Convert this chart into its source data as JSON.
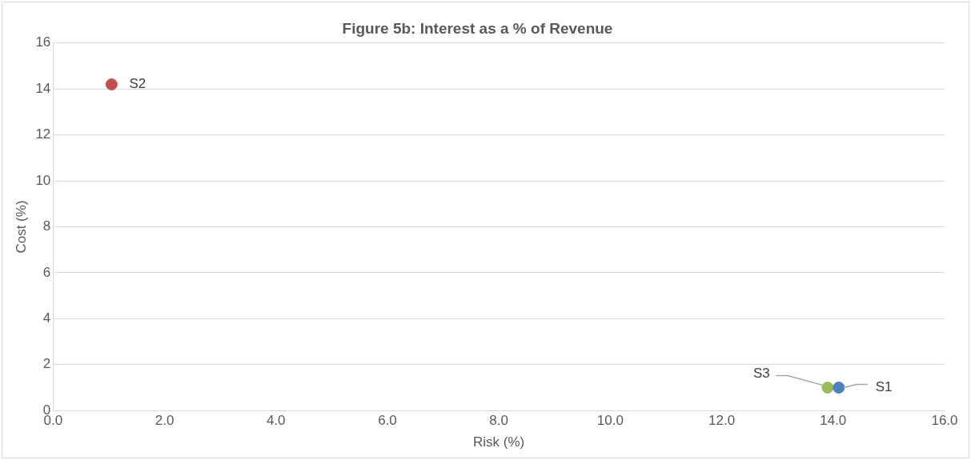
{
  "chart_data": {
    "type": "scatter",
    "title": "Figure 5b: Interest as a % of Revenue",
    "xlabel": "Risk (%)",
    "ylabel": "Cost (%)",
    "series": [
      {
        "name": "S1",
        "color": "#4f81bd",
        "x": [
          14.1
        ],
        "values": [
          1.0
        ]
      },
      {
        "name": "S2",
        "color": "#c0504d",
        "x": [
          1.05
        ],
        "values": [
          14.2
        ]
      },
      {
        "name": "S3",
        "color": "#9bbb59",
        "x": [
          13.9
        ],
        "values": [
          1.0
        ]
      }
    ],
    "xlim": [
      0,
      16
    ],
    "xticks": [
      {
        "value": 0,
        "label": "0.0"
      },
      {
        "value": 2,
        "label": "2.0"
      },
      {
        "value": 4,
        "label": "4.0"
      },
      {
        "value": 6,
        "label": "6.0"
      },
      {
        "value": 8,
        "label": "8.0"
      },
      {
        "value": 10,
        "label": "10.0"
      },
      {
        "value": 12,
        "label": "12.0"
      },
      {
        "value": 14,
        "label": "14.0"
      },
      {
        "value": 16,
        "label": "16.0"
      }
    ],
    "ylim": [
      0,
      16
    ],
    "yticks": [
      0,
      2,
      4,
      6,
      8,
      10,
      12,
      14,
      16
    ],
    "grid": "y",
    "legend": false,
    "marker": "circle"
  }
}
